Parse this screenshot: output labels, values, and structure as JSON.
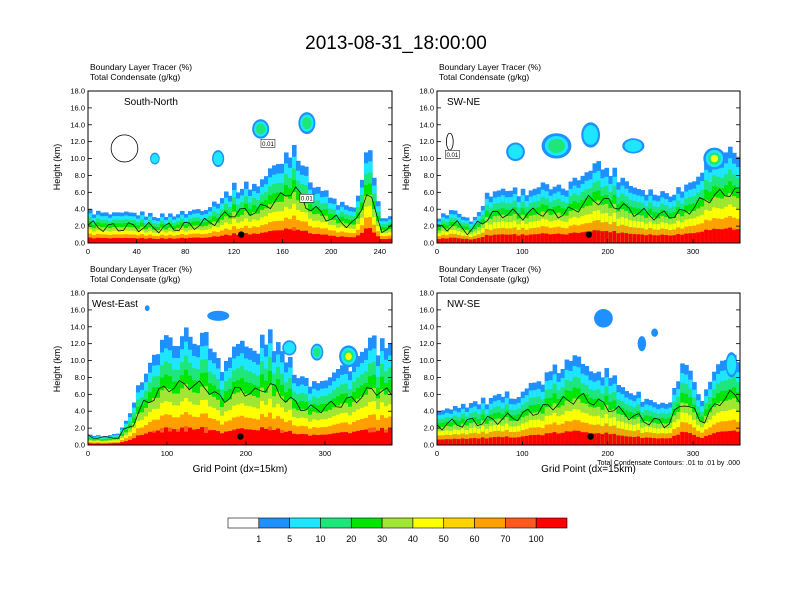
{
  "title": "2013-08-31_18:00:00",
  "colors": {
    "bins": [
      "#ffffff",
      "#1e90ff",
      "#1ee6ff",
      "#1ee678",
      "#00e600",
      "#a0e632",
      "#ffff00",
      "#ffd200",
      "#ffa000",
      "#ff5a1e",
      "#ff0000"
    ],
    "contour": "#000000"
  },
  "colorbar": {
    "labels": [
      "1",
      "5",
      "10",
      "20",
      "30",
      "40",
      "50",
      "60",
      "70",
      "100"
    ]
  },
  "footnote": "Total Condensate Contours: .01 to .01 by .000",
  "chart_data": [
    {
      "type": "heatmap",
      "panel_label": "South-North",
      "subtitle_lines": [
        "Boundary Layer Tracer   (%)",
        "Total Condensate   (g/kg)"
      ],
      "ylabel": "Height (km)",
      "xlabel": "",
      "xlim": [
        0,
        250
      ],
      "ylim": [
        0,
        18
      ],
      "xticks": [
        "0",
        "40",
        "80",
        "120",
        "160",
        "200",
        "240"
      ],
      "xtick_values": [
        0,
        40,
        80,
        120,
        160,
        200,
        240
      ],
      "yticks": [
        "0.0",
        "2.0",
        "4.0",
        "6.0",
        "8.0",
        "10.0",
        "12.0",
        "14.0",
        "16.0",
        "18.0"
      ],
      "contour_labels": [
        {
          "text": "0.01",
          "x": 148,
          "y": 11.8
        },
        {
          "text": "0.01",
          "x": 180,
          "y": 5.3
        }
      ],
      "marker": {
        "x": 126,
        "y": 1.0
      },
      "profile": {
        "x": [
          0,
          20,
          40,
          60,
          80,
          100,
          120,
          140,
          160,
          170,
          180,
          200,
          220,
          230,
          240,
          250
        ],
        "y": [
          3.8,
          3.3,
          3.5,
          3.2,
          3.6,
          4.4,
          6.5,
          7.0,
          10.0,
          11.8,
          8.0,
          5.2,
          3.8,
          11.8,
          3.3,
          3.0
        ]
      },
      "clouds": [
        {
          "x": 30,
          "y": 11.2,
          "w": 22,
          "h": 3.2,
          "v": 0
        },
        {
          "x": 142,
          "y": 13.5,
          "w": 14,
          "h": 2.3,
          "v": 4
        },
        {
          "x": 180,
          "y": 14.2,
          "w": 14,
          "h": 2.6,
          "v": 3
        },
        {
          "x": 107,
          "y": 10.0,
          "w": 10,
          "h": 2.0,
          "v": 2
        },
        {
          "x": 55,
          "y": 10.0,
          "w": 8,
          "h": 1.4,
          "v": 2
        }
      ]
    },
    {
      "type": "heatmap",
      "panel_label": "SW-NE",
      "subtitle_lines": [
        "Boundary Layer Tracer   (%)",
        "Total Condensate   (g/kg)"
      ],
      "ylabel": "Height (km)",
      "xlabel": "",
      "xlim": [
        0,
        355
      ],
      "ylim": [
        0,
        18
      ],
      "xticks": [
        "0",
        "100",
        "200",
        "300"
      ],
      "xtick_values": [
        0,
        100,
        200,
        300
      ],
      "yticks": [
        "0.0",
        "2.0",
        "4.0",
        "6.0",
        "8.0",
        "10.0",
        "12.0",
        "14.0",
        "16.0",
        "18.0"
      ],
      "contour_labels": [
        {
          "text": "0.01",
          "x": 18,
          "y": 10.5
        }
      ],
      "marker": {
        "x": 178,
        "y": 1.0
      },
      "profile": {
        "x": [
          0,
          20,
          40,
          60,
          80,
          100,
          120,
          140,
          160,
          180,
          200,
          230,
          260,
          290,
          310,
          330,
          355
        ],
        "y": [
          3.0,
          4.0,
          2.5,
          5.8,
          6.5,
          6.0,
          6.8,
          6.2,
          7.0,
          9.5,
          8.8,
          6.8,
          5.8,
          6.5,
          9.0,
          10.5,
          11.2
        ]
      },
      "clouds": [
        {
          "x": 140,
          "y": 11.5,
          "w": 35,
          "h": 3.0,
          "v": 3
        },
        {
          "x": 180,
          "y": 12.8,
          "w": 22,
          "h": 3.0,
          "v": 2
        },
        {
          "x": 92,
          "y": 10.8,
          "w": 22,
          "h": 2.2,
          "v": 2
        },
        {
          "x": 230,
          "y": 11.5,
          "w": 26,
          "h": 1.8,
          "v": 2
        },
        {
          "x": 325,
          "y": 10.0,
          "w": 26,
          "h": 2.6,
          "v": 6
        },
        {
          "x": 15,
          "y": 12.0,
          "w": 8,
          "h": 2.0,
          "v": 0
        }
      ]
    },
    {
      "type": "heatmap",
      "panel_label": "West-East",
      "subtitle_lines": [
        "Boundary Layer Tracer   (%)",
        "Total Condensate   (g/kg)"
      ],
      "ylabel": "Height (km)",
      "xlabel": "Grid Point (dx=15km)",
      "xlim": [
        0,
        385
      ],
      "ylim": [
        0,
        18
      ],
      "xticks": [
        "0",
        "100",
        "200",
        "300"
      ],
      "xtick_values": [
        0,
        100,
        200,
        300
      ],
      "yticks": [
        "0.0",
        "2.0",
        "4.0",
        "6.0",
        "8.0",
        "10.0",
        "12.0",
        "14.0",
        "16.0",
        "18.0"
      ],
      "contour_labels": [],
      "marker": {
        "x": 193,
        "y": 1.0
      },
      "profile": {
        "x": [
          0,
          20,
          40,
          55,
          70,
          90,
          110,
          130,
          150,
          170,
          190,
          210,
          230,
          250,
          280,
          310,
          340,
          360,
          385
        ],
        "y": [
          1.2,
          1.0,
          1.3,
          4.5,
          8.5,
          11.5,
          12.8,
          13.0,
          12.5,
          9.5,
          12.0,
          11.0,
          13.0,
          10.0,
          7.5,
          8.5,
          10.0,
          12.0,
          11.0
        ]
      },
      "clouds": [
        {
          "x": 165,
          "y": 15.3,
          "w": 28,
          "h": 1.2,
          "v": 1
        },
        {
          "x": 330,
          "y": 10.5,
          "w": 24,
          "h": 2.6,
          "v": 6
        },
        {
          "x": 290,
          "y": 11.0,
          "w": 16,
          "h": 2.0,
          "v": 3
        },
        {
          "x": 255,
          "y": 11.5,
          "w": 18,
          "h": 1.8,
          "v": 2
        },
        {
          "x": 75,
          "y": 16.2,
          "w": 6,
          "h": 0.7,
          "v": 1
        }
      ]
    },
    {
      "type": "heatmap",
      "panel_label": "NW-SE",
      "subtitle_lines": [
        "Boundary Layer Tracer   (%)",
        "Total Condensate   (g/kg)"
      ],
      "ylabel": "Height (km)",
      "xlabel": "Grid Point (dx=15km)",
      "xlim": [
        0,
        355
      ],
      "ylim": [
        0,
        18
      ],
      "xticks": [
        "0",
        "100",
        "200",
        "300"
      ],
      "xtick_values": [
        0,
        100,
        200,
        300
      ],
      "yticks": [
        "0.0",
        "2.0",
        "4.0",
        "6.0",
        "8.0",
        "10.0",
        "12.0",
        "14.0",
        "16.0",
        "18.0"
      ],
      "contour_labels": [],
      "marker": {
        "x": 180,
        "y": 1.0
      },
      "profile": {
        "x": [
          0,
          30,
          60,
          90,
          120,
          150,
          170,
          190,
          210,
          240,
          270,
          290,
          310,
          340,
          355
        ],
        "y": [
          4.2,
          4.8,
          5.2,
          6.0,
          7.5,
          9.5,
          10.2,
          9.0,
          7.5,
          5.5,
          4.5,
          9.5,
          5.0,
          11.0,
          10.0
        ]
      },
      "clouds": [
        {
          "x": 195,
          "y": 15.0,
          "w": 22,
          "h": 2.2,
          "v": 1
        },
        {
          "x": 240,
          "y": 12.0,
          "w": 10,
          "h": 1.8,
          "v": 1
        },
        {
          "x": 255,
          "y": 13.3,
          "w": 8,
          "h": 1.0,
          "v": 1
        },
        {
          "x": 345,
          "y": 9.5,
          "w": 14,
          "h": 3.0,
          "v": 2
        }
      ]
    }
  ]
}
